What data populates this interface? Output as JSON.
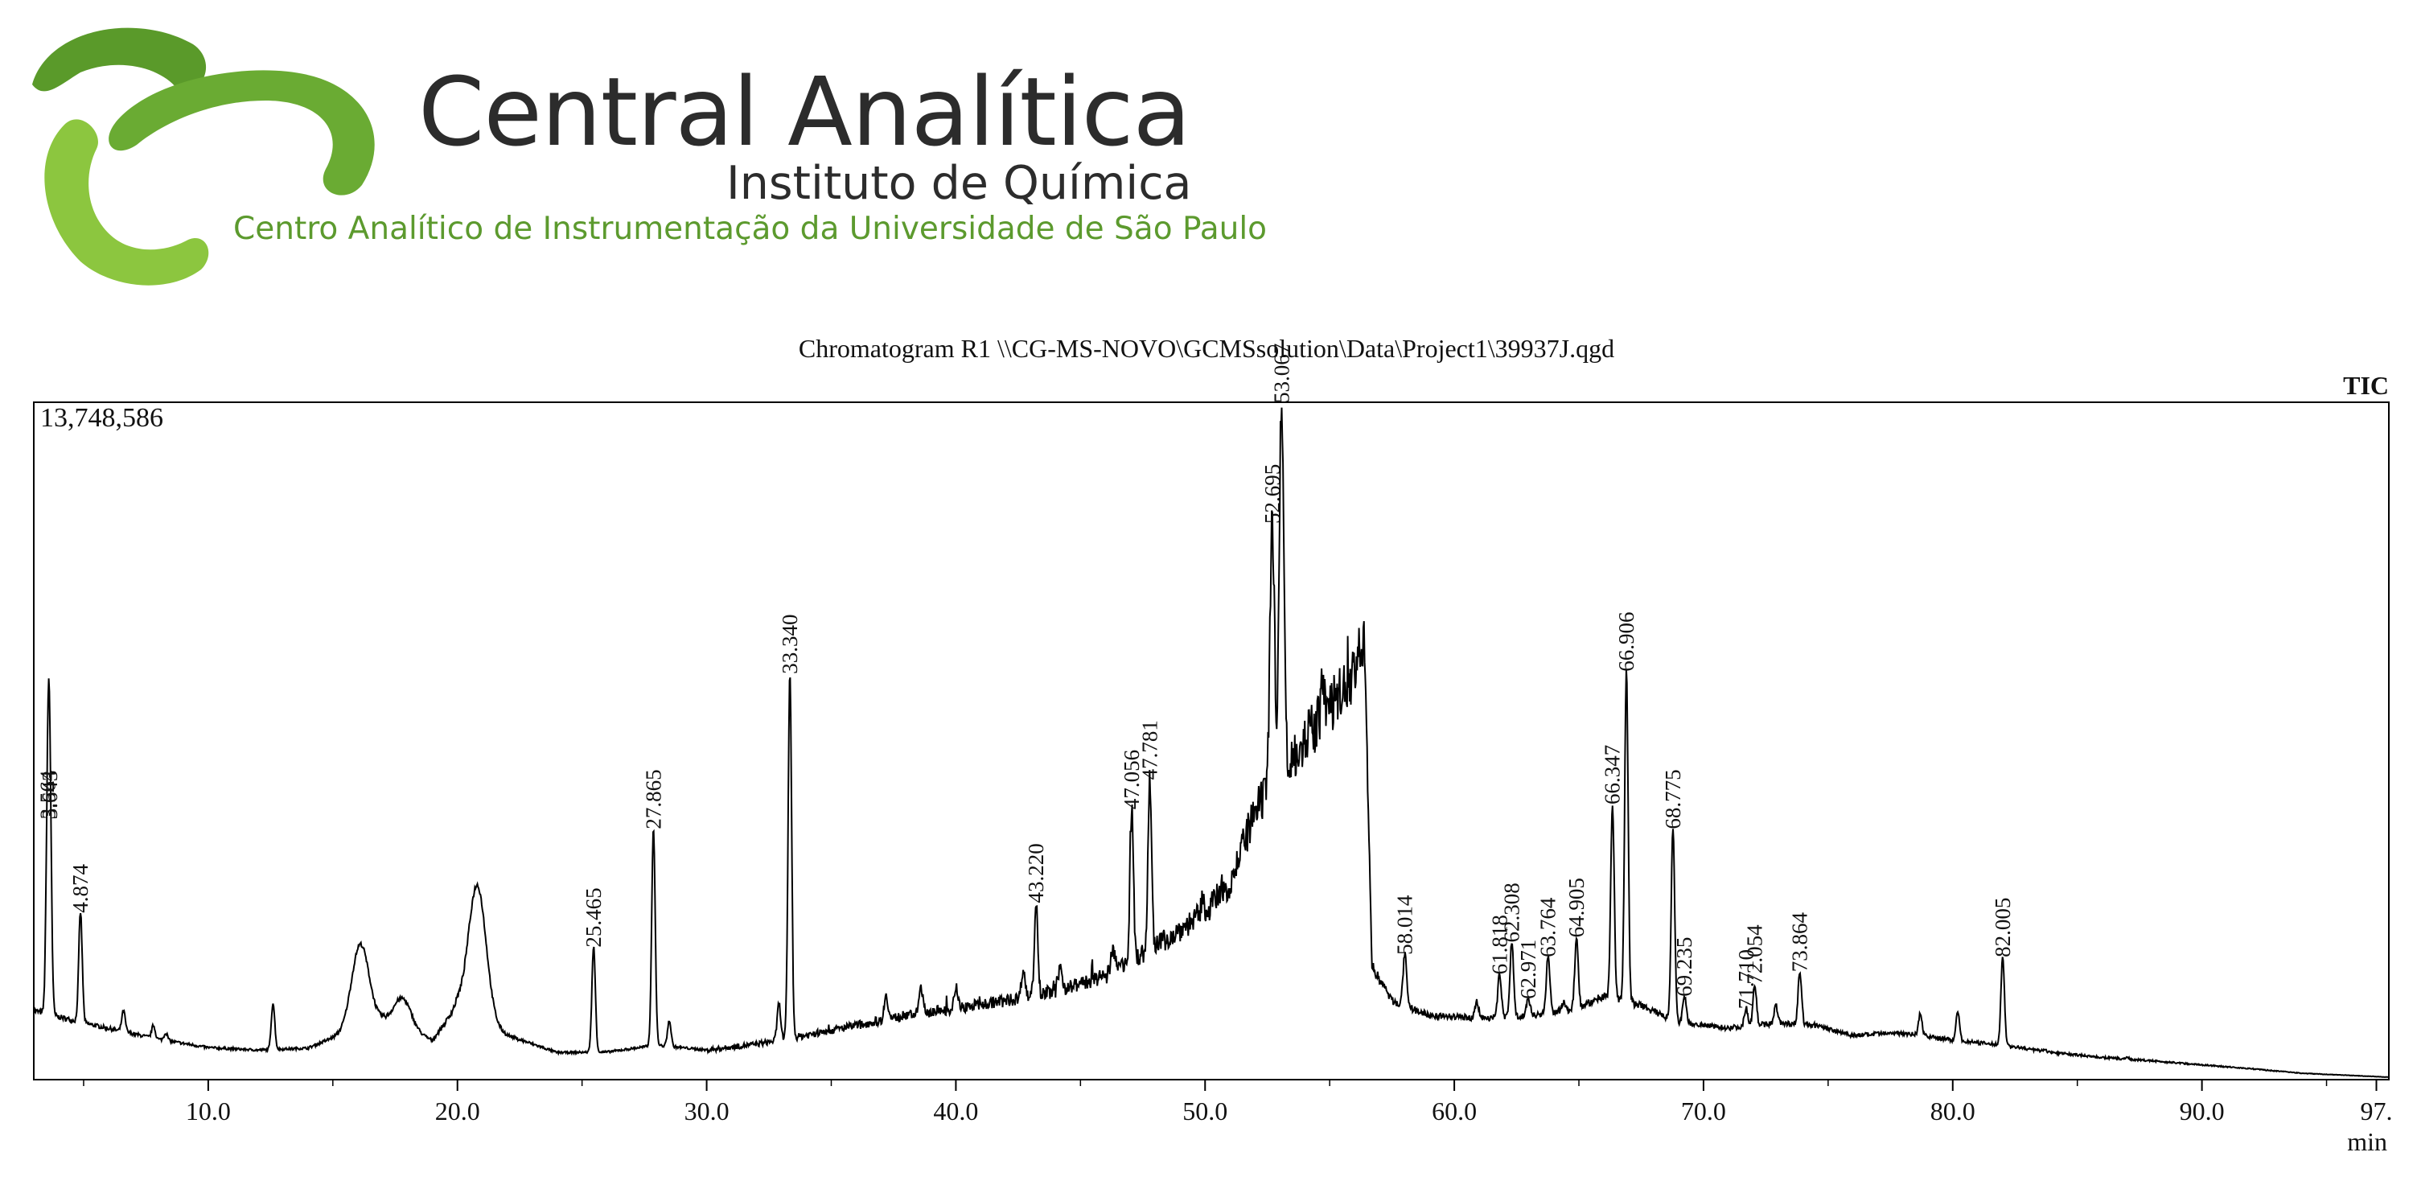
{
  "header": {
    "org_name": "Central Analítica",
    "org_subtitle": "Instituto de Química",
    "org_description": "Centro Analítico de Instrumentação da Universidade de São Paulo",
    "logo_colors": {
      "dark_green": "#5a9a2a",
      "light_green": "#8cc63f"
    }
  },
  "chart_data": {
    "type": "line",
    "title": "Chromatogram R1 \\\\CG-MS-NOVO\\GCMSsolution\\Data\\Project1\\39937J.qgd",
    "trace_label": "TIC",
    "ymax_label": "13,748,586",
    "xlabel": "min",
    "xlim": [
      3.0,
      97.5
    ],
    "ylim": [
      0,
      13748586
    ],
    "x_ticks": [
      "10.0",
      "20.0",
      "30.0",
      "40.0",
      "50.0",
      "60.0",
      "70.0",
      "80.0",
      "90.0",
      "97."
    ],
    "x_tick_values": [
      10,
      20,
      30,
      40,
      50,
      60,
      70,
      80,
      90,
      97
    ],
    "grid": false,
    "line_color": "#000000",
    "peaks": [
      {
        "x": 3.564,
        "y": 5300000,
        "label": "3.564"
      },
      {
        "x": 3.643,
        "y": 5300000,
        "label": "3.643"
      },
      {
        "x": 4.874,
        "y": 3400000,
        "label": "4.874"
      },
      {
        "x": 25.465,
        "y": 2700000,
        "label": "25.465"
      },
      {
        "x": 27.865,
        "y": 5100000,
        "label": "27.865"
      },
      {
        "x": 33.34,
        "y": 8250000,
        "label": "33.340"
      },
      {
        "x": 43.22,
        "y": 3600000,
        "label": "43.220"
      },
      {
        "x": 47.056,
        "y": 5500000,
        "label": "47.056"
      },
      {
        "x": 47.781,
        "y": 6100000,
        "label": "47.781"
      },
      {
        "x": 52.695,
        "y": 11300000,
        "label": "52.695"
      },
      {
        "x": 53.067,
        "y": 13748586,
        "label": "53.067"
      },
      {
        "x": 58.014,
        "y": 2550000,
        "label": "58.014"
      },
      {
        "x": 61.818,
        "y": 2150000,
        "label": "61.818"
      },
      {
        "x": 62.308,
        "y": 2800000,
        "label": "62.308"
      },
      {
        "x": 62.971,
        "y": 1650000,
        "label": "62.971"
      },
      {
        "x": 63.764,
        "y": 2500000,
        "label": "63.764"
      },
      {
        "x": 64.905,
        "y": 2900000,
        "label": "64.905"
      },
      {
        "x": 66.347,
        "y": 5600000,
        "label": "66.347"
      },
      {
        "x": 66.906,
        "y": 8300000,
        "label": "66.906"
      },
      {
        "x": 68.775,
        "y": 5100000,
        "label": "68.775"
      },
      {
        "x": 69.235,
        "y": 1700000,
        "label": "69.235"
      },
      {
        "x": 71.71,
        "y": 1450000,
        "label": "71.710"
      },
      {
        "x": 72.054,
        "y": 1950000,
        "label": "72.054"
      },
      {
        "x": 73.864,
        "y": 2200000,
        "label": "73.864"
      },
      {
        "x": 82.005,
        "y": 2500000,
        "label": "82.005"
      }
    ],
    "unlabeled_peaks": [
      {
        "x": 6.6,
        "y": 1400000
      },
      {
        "x": 7.8,
        "y": 1100000
      },
      {
        "x": 8.3,
        "y": 950000
      },
      {
        "x": 12.6,
        "y": 1550000
      },
      {
        "x": 16.1,
        "y": 2750000
      },
      {
        "x": 17.8,
        "y": 1650000
      },
      {
        "x": 20.8,
        "y": 3950000
      },
      {
        "x": 28.5,
        "y": 1200000
      },
      {
        "x": 32.9,
        "y": 1550000
      },
      {
        "x": 37.2,
        "y": 1750000
      },
      {
        "x": 38.6,
        "y": 1900000
      },
      {
        "x": 40.0,
        "y": 1900000
      },
      {
        "x": 42.7,
        "y": 2250000
      },
      {
        "x": 44.2,
        "y": 2300000
      },
      {
        "x": 46.3,
        "y": 2700000
      },
      {
        "x": 49.9,
        "y": 3600000
      },
      {
        "x": 51.5,
        "y": 4500000
      },
      {
        "x": 54.7,
        "y": 7900000
      },
      {
        "x": 56.4,
        "y": 8700000
      },
      {
        "x": 60.9,
        "y": 1600000
      },
      {
        "x": 64.4,
        "y": 1550000
      },
      {
        "x": 70.4,
        "y": 1050000
      },
      {
        "x": 72.9,
        "y": 1500000
      },
      {
        "x": 78.7,
        "y": 1350000
      },
      {
        "x": 80.2,
        "y": 1400000
      },
      {
        "x": 83.7,
        "y": 600000
      },
      {
        "x": 87.0,
        "y": 450000
      }
    ],
    "baseline": [
      [
        3.0,
        1400000
      ],
      [
        5.0,
        1150000
      ],
      [
        8.0,
        820000
      ],
      [
        10.0,
        650000
      ],
      [
        12.0,
        600000
      ],
      [
        14.0,
        640000
      ],
      [
        15.0,
        850000
      ],
      [
        17.0,
        1200000
      ],
      [
        19.0,
        800000
      ],
      [
        20.0,
        1500000
      ],
      [
        22.0,
        900000
      ],
      [
        24.0,
        550000
      ],
      [
        26.0,
        560000
      ],
      [
        28.0,
        700000
      ],
      [
        30.0,
        600000
      ],
      [
        32.0,
        720000
      ],
      [
        34.0,
        900000
      ],
      [
        36.0,
        1100000
      ],
      [
        38.0,
        1300000
      ],
      [
        40.0,
        1450000
      ],
      [
        42.0,
        1600000
      ],
      [
        44.0,
        1800000
      ],
      [
        46.0,
        2100000
      ],
      [
        48.0,
        2700000
      ],
      [
        50.0,
        3400000
      ],
      [
        51.0,
        4000000
      ],
      [
        52.0,
        5400000
      ],
      [
        53.5,
        6600000
      ],
      [
        54.5,
        7200000
      ],
      [
        55.5,
        7900000
      ],
      [
        56.4,
        8700000
      ],
      [
        56.7,
        2300000
      ],
      [
        57.5,
        1600000
      ],
      [
        59.0,
        1300000
      ],
      [
        61.0,
        1250000
      ],
      [
        63.0,
        1300000
      ],
      [
        65.0,
        1450000
      ],
      [
        66.0,
        1700000
      ],
      [
        67.5,
        1500000
      ],
      [
        69.0,
        1150000
      ],
      [
        71.0,
        1050000
      ],
      [
        73.0,
        1150000
      ],
      [
        74.5,
        1100000
      ],
      [
        76.0,
        900000
      ],
      [
        78.0,
        950000
      ],
      [
        80.0,
        800000
      ],
      [
        82.0,
        700000
      ],
      [
        84.0,
        550000
      ],
      [
        86.0,
        450000
      ],
      [
        88.0,
        380000
      ],
      [
        90.0,
        300000
      ],
      [
        92.0,
        220000
      ],
      [
        94.0,
        130000
      ],
      [
        97.5,
        50000
      ]
    ]
  }
}
